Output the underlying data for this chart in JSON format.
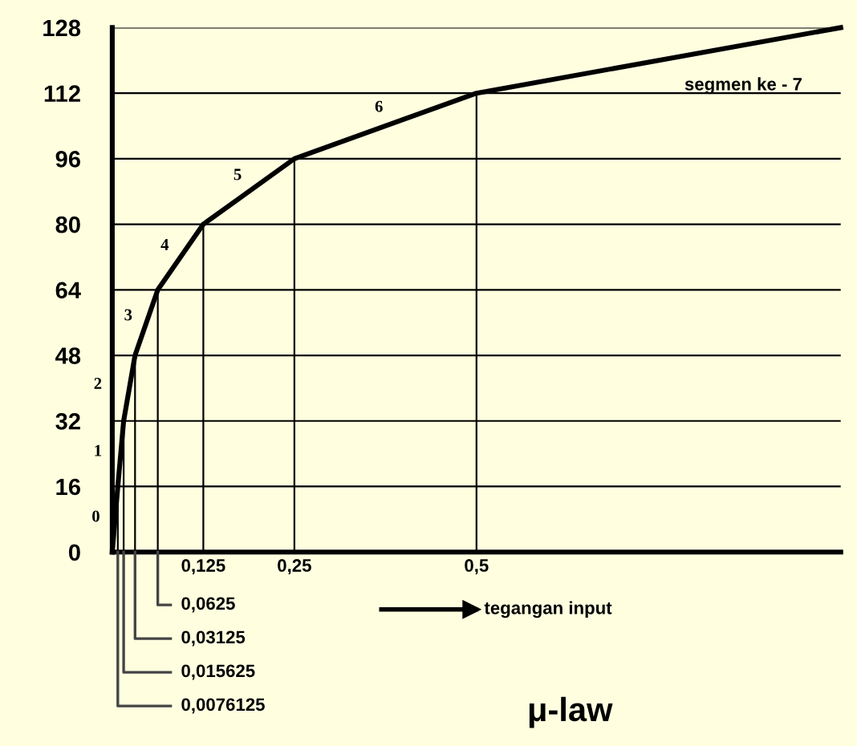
{
  "chart_data": {
    "type": "line",
    "title": "μ-law",
    "x": [
      0,
      0.0076125,
      0.015625,
      0.03125,
      0.0625,
      0.125,
      0.25,
      0.5,
      1
    ],
    "series": [
      {
        "color": "#000000",
        "values": [
          0,
          16,
          32,
          48,
          64,
          80,
          96,
          112,
          128
        ]
      }
    ],
    "xlim": [
      0,
      1
    ],
    "ylim": [
      0,
      128
    ],
    "xticks": [
      {
        "value": 0.0076125,
        "label": null
      },
      {
        "value": 0.015625,
        "label": null
      },
      {
        "value": 0.03125,
        "label": null
      },
      {
        "value": 0.0625,
        "label": null
      },
      {
        "value": 0.125,
        "label": "0,125"
      },
      {
        "value": 0.25,
        "label": "0,25"
      },
      {
        "value": 0.5,
        "label": "0,5"
      }
    ],
    "yticks": [
      0,
      16,
      32,
      48,
      64,
      80,
      96,
      112,
      128
    ],
    "grid": true,
    "marker": "none",
    "line_style": "solid",
    "xlabel": "tegangan input",
    "annotations": [
      "0",
      "1",
      "2",
      "3",
      "4",
      "5",
      "6",
      "segmen ke - 7",
      "0,0625",
      "0,03125",
      "0,015625",
      "0,0076125"
    ]
  }
}
